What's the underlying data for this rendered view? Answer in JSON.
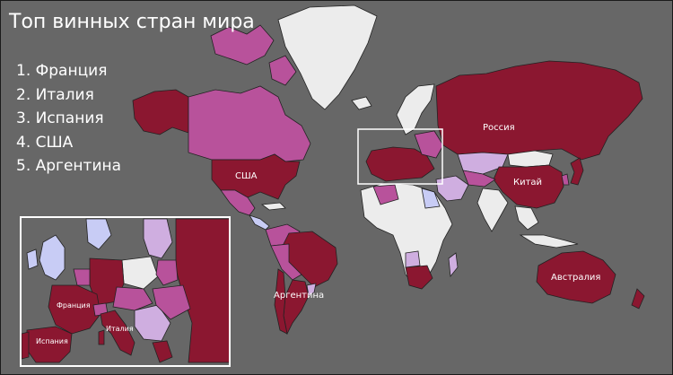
{
  "title": "Топ винных стран мира",
  "ranking": [
    "1. Франция",
    "2. Италия",
    "3. Испания",
    "4. США",
    "5. Аргентина"
  ],
  "map_labels": {
    "russia": "Россия",
    "usa": "США",
    "china": "Китай",
    "australia": "Австралия",
    "argentina": "Аргентина"
  },
  "inset_labels": {
    "france": "Франция",
    "italy": "Италия",
    "spain": "Испания"
  },
  "colors": {
    "background": "#676767",
    "top_producer": "#8b1730",
    "major_producer": "#b8529b",
    "minor_producer": "#cfaee0",
    "small_producer": "#c8ccf5",
    "no_data": "#ececec"
  }
}
